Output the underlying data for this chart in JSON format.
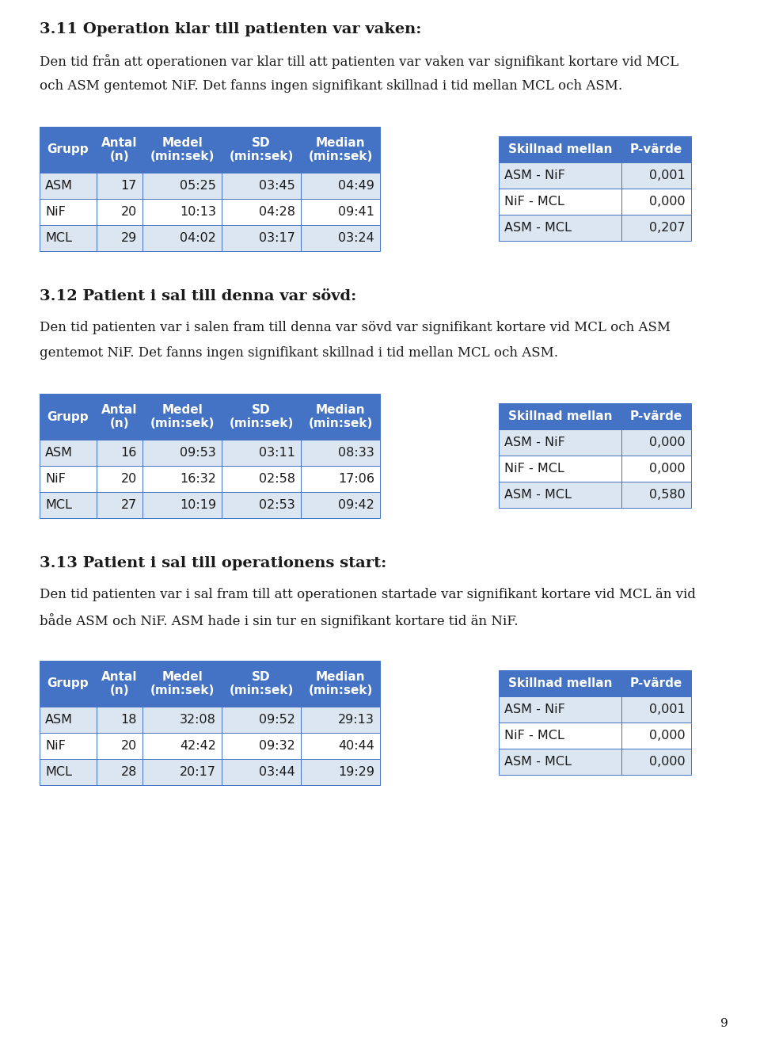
{
  "page_bg": "#ffffff",
  "header_color": "#4472c4",
  "header_text_color": "#ffffff",
  "row_alt_color": "#dce6f1",
  "row_white_color": "#ffffff",
  "border_color": "#4472c4",
  "text_color": "#1a1a1a",
  "section1_title": "3.11 Operation klar till patienten var vaken:",
  "section1_para_lines": [
    "Den tid från att operationen var klar till att patienten var vaken var signifikant kortare vid MCL",
    "och ASM gentemot NiF. Det fanns ingen signifikant skillnad i tid mellan MCL och ASM."
  ],
  "section2_title": "3.12 Patient i sal till denna var sövd:",
  "section2_para_lines": [
    "Den tid patienten var i salen fram till denna var sövd var signifikant kortare vid MCL och ASM",
    "gentemot NiF. Det fanns ingen signifikant skillnad i tid mellan MCL och ASM."
  ],
  "section3_title": "3.13 Patient i sal till operationens start:",
  "section3_para_lines": [
    "Den tid patienten var i sal fram till att operationen startade var signifikant kortare vid MCL än vid",
    "både ASM och NiF. ASM hade i sin tur en signifikant kortare tid än NiF."
  ],
  "left_headers": [
    "Grupp",
    "Antal\n(n)",
    "Medel\n(min:sek)",
    "SD\n(min:sek)",
    "Median\n(min:sek)"
  ],
  "right_headers": [
    "Skillnad mellan",
    "P-värde"
  ],
  "table1_rows": [
    [
      "ASM",
      "17",
      "05:25",
      "03:45",
      "04:49"
    ],
    [
      "NiF",
      "20",
      "10:13",
      "04:28",
      "09:41"
    ],
    [
      "MCL",
      "29",
      "04:02",
      "03:17",
      "03:24"
    ]
  ],
  "table1_right": [
    [
      "ASM - NiF",
      "0,001"
    ],
    [
      "NiF - MCL",
      "0,000"
    ],
    [
      "ASM - MCL",
      "0,207"
    ]
  ],
  "table2_rows": [
    [
      "ASM",
      "16",
      "09:53",
      "03:11",
      "08:33"
    ],
    [
      "NiF",
      "20",
      "16:32",
      "02:58",
      "17:06"
    ],
    [
      "MCL",
      "27",
      "10:19",
      "02:53",
      "09:42"
    ]
  ],
  "table2_right": [
    [
      "ASM - NiF",
      "0,000"
    ],
    [
      "NiF - MCL",
      "0,000"
    ],
    [
      "ASM - MCL",
      "0,580"
    ]
  ],
  "table3_rows": [
    [
      "ASM",
      "18",
      "32:08",
      "09:52",
      "29:13"
    ],
    [
      "NiF",
      "20",
      "42:42",
      "09:32",
      "40:44"
    ],
    [
      "MCL",
      "28",
      "20:17",
      "03:44",
      "19:29"
    ]
  ],
  "table3_right": [
    [
      "ASM - NiF",
      "0,001"
    ],
    [
      "NiF - MCL",
      "0,000"
    ],
    [
      "ASM - MCL",
      "0,000"
    ]
  ],
  "page_number": "9",
  "font_size_title": 14,
  "font_size_body": 12,
  "font_size_table_header": 11,
  "font_size_table_body": 11.5,
  "font_size_page": 11
}
